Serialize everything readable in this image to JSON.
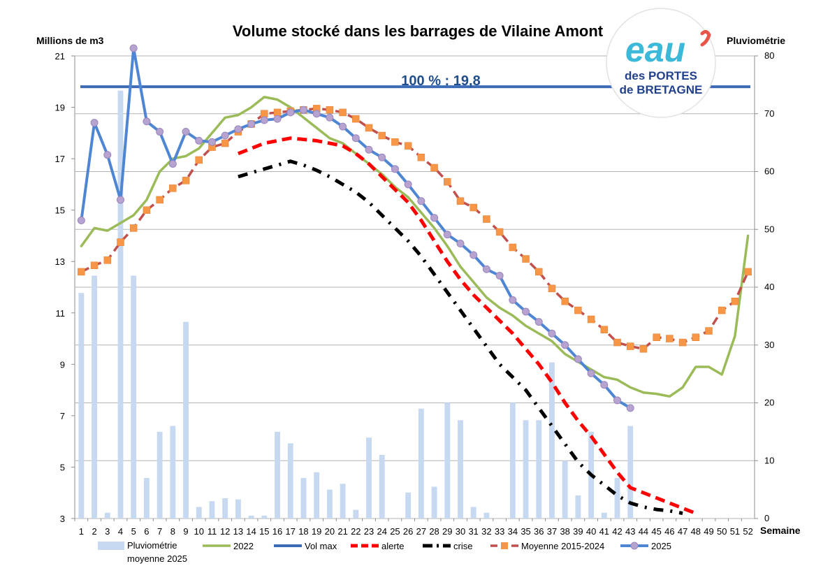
{
  "chart_data": {
    "type": "combo",
    "title": "Volume stocké dans les barrages de Vilaine Amont",
    "ylabel_left": "Millions de m3",
    "ylabel_right": "Pluviométrie",
    "xlabel": "Semaine",
    "ylim_left": [
      3,
      21
    ],
    "yticks_left": [
      3,
      5,
      7,
      9,
      11,
      13,
      15,
      17,
      19,
      21
    ],
    "ylim_right": [
      0,
      80
    ],
    "yticks_right": [
      0,
      10,
      20,
      30,
      40,
      50,
      60,
      70,
      80
    ],
    "weeks": [
      1,
      2,
      3,
      4,
      5,
      6,
      7,
      8,
      9,
      10,
      11,
      12,
      13,
      14,
      15,
      16,
      17,
      18,
      19,
      20,
      21,
      22,
      23,
      24,
      25,
      26,
      27,
      28,
      29,
      30,
      31,
      32,
      33,
      34,
      35,
      36,
      37,
      38,
      39,
      40,
      41,
      42,
      43,
      44,
      45,
      46,
      47,
      48,
      49,
      50,
      51,
      52
    ],
    "annotation": "100 % : 19,8",
    "vol_max": 19.8,
    "logo": {
      "line1": "eau",
      "line2": "des PORTES",
      "line3": "de BRETAGNE"
    },
    "series": [
      {
        "name": "Pluviométrie moyenne 2025",
        "type": "bar",
        "axis": "right",
        "color": "#c6d9f1",
        "values": [
          39,
          42,
          1,
          74,
          42,
          7,
          15,
          16,
          34,
          2,
          3,
          3.5,
          3.3,
          0.5,
          0.5,
          15,
          13,
          7,
          8,
          5,
          6,
          1.5,
          14,
          11,
          0,
          4.5,
          19,
          5.5,
          20,
          17,
          2,
          1,
          0,
          20,
          17,
          17,
          27,
          10,
          4,
          15,
          1,
          7,
          16,
          null,
          null,
          null,
          null,
          null,
          null,
          null,
          null,
          null
        ]
      },
      {
        "name": "2022",
        "type": "line",
        "axis": "left",
        "color": "#9bbb59",
        "values": [
          13.6,
          14.3,
          14.2,
          14.5,
          14.8,
          15.4,
          16.5,
          17.0,
          17.1,
          17.4,
          18.0,
          18.6,
          18.7,
          19.0,
          19.4,
          19.3,
          19.0,
          18.6,
          18.2,
          17.8,
          17.6,
          17.2,
          16.8,
          16.4,
          15.9,
          15.5,
          14.9,
          14.3,
          13.6,
          12.8,
          12.2,
          11.6,
          11.2,
          10.9,
          10.5,
          10.2,
          9.9,
          9.4,
          9.1,
          8.8,
          8.5,
          8.4,
          8.1,
          7.9,
          7.85,
          7.75,
          8.1,
          8.9,
          8.9,
          8.6,
          10.1,
          14.0
        ]
      },
      {
        "name": "Vol max",
        "type": "line",
        "axis": "left",
        "color": "#3d6bb5",
        "values": [
          19.8,
          19.8,
          19.8,
          19.8,
          19.8,
          19.8,
          19.8,
          19.8,
          19.8,
          19.8,
          19.8,
          19.8,
          19.8,
          19.8,
          19.8,
          19.8,
          19.8,
          19.8,
          19.8,
          19.8,
          19.8,
          19.8,
          19.8,
          19.8,
          19.8,
          19.8,
          19.8,
          19.8,
          19.8,
          19.8,
          19.8,
          19.8,
          19.8,
          19.8,
          19.8,
          19.8,
          19.8,
          19.8,
          19.8,
          19.8,
          19.8,
          19.8,
          19.8,
          19.8,
          19.8,
          19.8,
          19.8,
          19.8,
          19.8,
          19.8,
          19.8,
          19.8
        ]
      },
      {
        "name": "alerte",
        "type": "line",
        "axis": "left",
        "color": "#ff0000",
        "dash": "dash",
        "values": [
          null,
          null,
          null,
          null,
          null,
          null,
          null,
          null,
          null,
          null,
          null,
          null,
          17.2,
          17.4,
          17.6,
          17.7,
          17.8,
          17.75,
          17.7,
          17.6,
          17.5,
          17.2,
          16.8,
          16.3,
          15.8,
          15.3,
          14.6,
          13.8,
          13.0,
          12.3,
          11.7,
          11.2,
          10.7,
          10.2,
          9.6,
          9.0,
          8.3,
          7.5,
          6.8,
          6.2,
          5.5,
          4.8,
          4.2,
          4.0,
          3.8,
          3.6,
          3.4,
          3.2,
          null,
          null,
          null,
          null
        ]
      },
      {
        "name": "crise",
        "type": "line",
        "axis": "left",
        "color": "#000000",
        "dash": "dashdot",
        "values": [
          null,
          null,
          null,
          null,
          null,
          null,
          null,
          null,
          null,
          null,
          null,
          null,
          16.3,
          16.45,
          16.6,
          16.75,
          16.9,
          16.75,
          16.55,
          16.3,
          16.0,
          15.7,
          15.3,
          14.8,
          14.3,
          13.8,
          13.2,
          12.5,
          11.8,
          11.1,
          10.4,
          9.7,
          9.0,
          8.5,
          8.0,
          7.3,
          6.6,
          5.9,
          5.2,
          4.7,
          4.3,
          3.9,
          3.6,
          3.45,
          3.35,
          3.3,
          3.2,
          null,
          null,
          null,
          null,
          null
        ]
      },
      {
        "name": "Moyenne 2015-2024",
        "type": "line",
        "axis": "left",
        "color": "#c0504d",
        "dash": "dash",
        "marker": "square",
        "marker_color": "#f79646",
        "values": [
          12.6,
          12.85,
          13.05,
          13.75,
          14.3,
          15.0,
          15.4,
          15.85,
          16.15,
          16.95,
          17.45,
          17.6,
          18.05,
          18.35,
          18.75,
          18.8,
          18.85,
          18.9,
          18.95,
          18.9,
          18.8,
          18.55,
          18.2,
          17.9,
          17.65,
          17.5,
          17.05,
          16.65,
          16.1,
          15.35,
          15.1,
          14.65,
          14.15,
          13.55,
          13.1,
          12.6,
          11.95,
          11.45,
          11.1,
          10.75,
          10.35,
          9.85,
          9.7,
          9.6,
          10.05,
          10.0,
          9.85,
          10.05,
          10.3,
          11.1,
          11.45,
          12.6
        ]
      },
      {
        "name": "2025",
        "type": "line",
        "axis": "left",
        "color": "#4f86d4",
        "marker": "circle",
        "marker_color": "#b7a3cf",
        "values": [
          14.6,
          18.4,
          17.15,
          15.4,
          21.3,
          18.45,
          18.05,
          16.8,
          18.05,
          17.7,
          17.65,
          17.9,
          18.15,
          18.35,
          18.5,
          18.55,
          18.8,
          18.9,
          18.75,
          18.6,
          18.25,
          17.8,
          17.35,
          17.05,
          16.6,
          16.0,
          15.35,
          14.7,
          14.05,
          13.7,
          13.25,
          12.7,
          12.45,
          11.5,
          11.05,
          10.65,
          10.2,
          9.75,
          9.2,
          8.65,
          8.2,
          7.6,
          7.3,
          null,
          null,
          null,
          null,
          null,
          null,
          null,
          null,
          null
        ]
      }
    ]
  }
}
